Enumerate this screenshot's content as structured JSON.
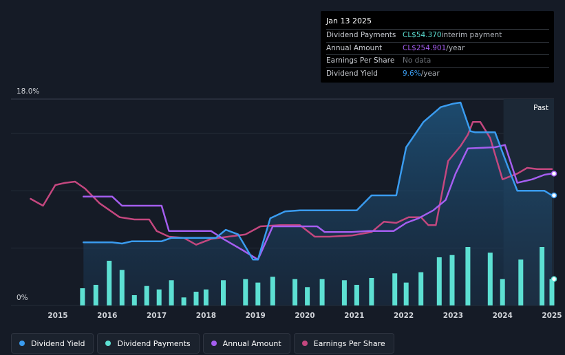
{
  "tooltip": {
    "date": "Jan 13 2025",
    "rows": [
      {
        "label": "Dividend Payments",
        "value": "CL$54.370",
        "suffix": " interim payment",
        "color": "#5de0d3"
      },
      {
        "label": "Annual Amount",
        "value": "CL$254.901",
        "suffix": "/year",
        "color": "#a55ef0"
      },
      {
        "label": "Earnings Per Share",
        "value": "No data",
        "suffix": "",
        "color": "#6f747b"
      },
      {
        "label": "Dividend Yield",
        "value": "9.6%",
        "suffix": "/year",
        "color": "#3a9cf0"
      }
    ]
  },
  "legend": [
    {
      "label": "Dividend Yield",
      "color": "#3a9cf0"
    },
    {
      "label": "Dividend Payments",
      "color": "#5de0d3"
    },
    {
      "label": "Annual Amount",
      "color": "#a55ef0"
    },
    {
      "label": "Earnings Per Share",
      "color": "#c4477f"
    }
  ],
  "chart_data": {
    "type": "line",
    "title": "",
    "ylim": [
      0,
      18
    ],
    "y_tick_labels": [
      "18.0%",
      "0%"
    ],
    "x_tick_labels": [
      "2015",
      "2016",
      "2017",
      "2018",
      "2019",
      "2020",
      "2021",
      "2022",
      "2023",
      "2024",
      "2025"
    ],
    "past_label": "Past",
    "series": [
      {
        "name": "Dividend Yield",
        "unit": "%",
        "color": "#3a9cf0",
        "fill": true,
        "points": [
          [
            2015.52,
            5.5
          ],
          [
            2016.1,
            5.5
          ],
          [
            2016.3,
            5.4
          ],
          [
            2016.5,
            5.6
          ],
          [
            2017.1,
            5.6
          ],
          [
            2017.3,
            5.9
          ],
          [
            2018.2,
            5.9
          ],
          [
            2018.4,
            6.6
          ],
          [
            2018.65,
            6.2
          ],
          [
            2018.95,
            4.0
          ],
          [
            2019.05,
            4.0
          ],
          [
            2019.3,
            7.6
          ],
          [
            2019.6,
            8.2
          ],
          [
            2019.9,
            8.3
          ],
          [
            2020.5,
            8.3
          ],
          [
            2021.05,
            8.3
          ],
          [
            2021.35,
            9.6
          ],
          [
            2021.85,
            9.6
          ],
          [
            2022.05,
            13.8
          ],
          [
            2022.4,
            16.0
          ],
          [
            2022.75,
            17.3
          ],
          [
            2023.0,
            17.6
          ],
          [
            2023.15,
            17.7
          ],
          [
            2023.35,
            15.2
          ],
          [
            2023.45,
            15.1
          ],
          [
            2023.85,
            15.1
          ],
          [
            2024.1,
            12.2
          ],
          [
            2024.3,
            10.0
          ],
          [
            2024.85,
            10.0
          ],
          [
            2025.0,
            9.6
          ]
        ]
      },
      {
        "name": "Annual Amount",
        "unit": "CL$/year",
        "color": "#a55ef0",
        "fill": false,
        "points": [
          [
            2015.52,
            9.5
          ],
          [
            2016.1,
            9.5
          ],
          [
            2016.3,
            8.7
          ],
          [
            2017.1,
            8.7
          ],
          [
            2017.25,
            6.5
          ],
          [
            2018.1,
            6.5
          ],
          [
            2018.35,
            5.8
          ],
          [
            2018.75,
            4.8
          ],
          [
            2019.05,
            4.0
          ],
          [
            2019.35,
            6.9
          ],
          [
            2019.6,
            6.9
          ],
          [
            2020.25,
            6.9
          ],
          [
            2020.4,
            6.4
          ],
          [
            2020.95,
            6.4
          ],
          [
            2021.3,
            6.5
          ],
          [
            2021.8,
            6.5
          ],
          [
            2022.05,
            7.2
          ],
          [
            2022.3,
            7.6
          ],
          [
            2022.6,
            8.3
          ],
          [
            2022.85,
            9.2
          ],
          [
            2023.05,
            11.5
          ],
          [
            2023.3,
            13.7
          ],
          [
            2023.85,
            13.8
          ],
          [
            2024.05,
            14.0
          ],
          [
            2024.3,
            10.7
          ],
          [
            2024.6,
            11.0
          ],
          [
            2024.85,
            11.4
          ],
          [
            2025.0,
            11.5
          ]
        ]
      },
      {
        "name": "Earnings Per Share",
        "unit": "CL$",
        "color": "#c4477f",
        "fill": false,
        "points": [
          [
            2014.45,
            9.3
          ],
          [
            2014.7,
            8.7
          ],
          [
            2014.95,
            10.5
          ],
          [
            2015.15,
            10.7
          ],
          [
            2015.35,
            10.8
          ],
          [
            2015.55,
            10.2
          ],
          [
            2015.85,
            8.9
          ],
          [
            2016.25,
            7.7
          ],
          [
            2016.55,
            7.5
          ],
          [
            2016.85,
            7.5
          ],
          [
            2017.0,
            6.5
          ],
          [
            2017.25,
            6.0
          ],
          [
            2017.55,
            5.9
          ],
          [
            2017.8,
            5.3
          ],
          [
            2018.1,
            5.8
          ],
          [
            2018.45,
            6.0
          ],
          [
            2018.8,
            6.2
          ],
          [
            2019.1,
            6.9
          ],
          [
            2019.5,
            7.0
          ],
          [
            2019.9,
            7.0
          ],
          [
            2020.2,
            6.0
          ],
          [
            2020.5,
            6.0
          ],
          [
            2020.95,
            6.1
          ],
          [
            2021.35,
            6.4
          ],
          [
            2021.6,
            7.3
          ],
          [
            2021.85,
            7.2
          ],
          [
            2022.1,
            7.7
          ],
          [
            2022.35,
            7.7
          ],
          [
            2022.5,
            7.0
          ],
          [
            2022.65,
            7.0
          ],
          [
            2022.9,
            12.6
          ],
          [
            2023.15,
            13.9
          ],
          [
            2023.3,
            14.9
          ],
          [
            2023.4,
            16.0
          ],
          [
            2023.55,
            16.0
          ],
          [
            2023.75,
            14.6
          ],
          [
            2024.0,
            11.0
          ],
          [
            2024.3,
            11.5
          ],
          [
            2024.5,
            12.0
          ],
          [
            2024.7,
            11.9
          ],
          [
            2025.0,
            11.9
          ]
        ]
      }
    ],
    "bars": {
      "name": "Dividend Payments",
      "color": "#5de0d3",
      "x": [
        2015.5,
        2015.77,
        2016.04,
        2016.3,
        2016.55,
        2016.8,
        2017.05,
        2017.3,
        2017.55,
        2017.8,
        2018.0,
        2018.35,
        2018.8,
        2019.05,
        2019.35,
        2019.8,
        2020.05,
        2020.35,
        2020.8,
        2021.05,
        2021.35,
        2021.82,
        2022.05,
        2022.35,
        2022.72,
        2022.98,
        2023.3,
        2023.75,
        2024.0,
        2024.37,
        2024.8,
        2025.0
      ],
      "values": [
        1.5,
        1.8,
        3.9,
        3.1,
        0.9,
        1.7,
        1.4,
        2.2,
        0.7,
        1.2,
        1.4,
        2.2,
        2.3,
        2.0,
        2.5,
        2.3,
        1.6,
        2.3,
        2.2,
        1.8,
        2.4,
        2.8,
        2.0,
        2.9,
        4.2,
        4.4,
        5.1,
        4.6,
        2.3,
        4.0,
        5.1,
        2.3
      ]
    }
  }
}
